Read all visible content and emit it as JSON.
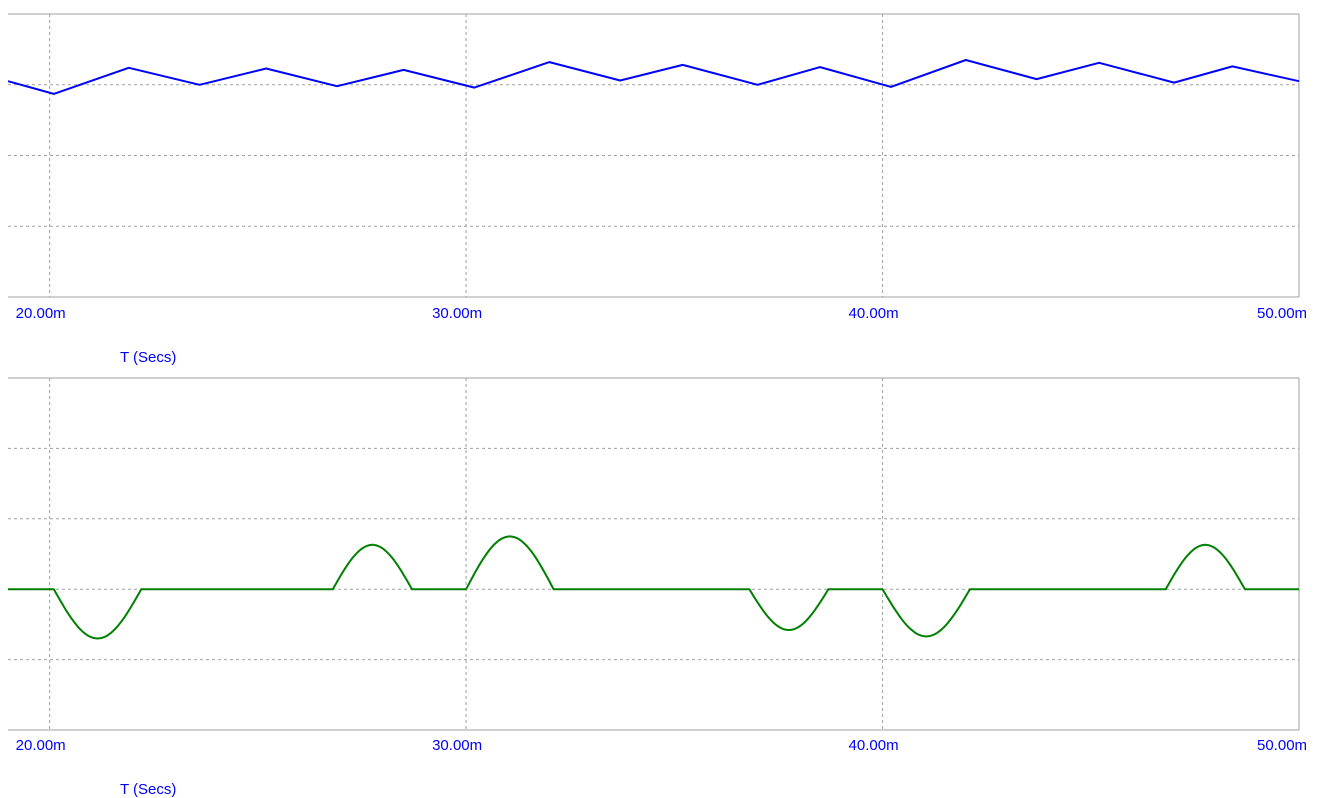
{
  "colors": {
    "grid": "#a0a0a0",
    "frame": "#a0a0a0",
    "axis_text": "#0000ff",
    "series_top": "#0000ff",
    "series_bottom": "#008000"
  },
  "chart_data": [
    {
      "type": "line",
      "title": "",
      "xlabel": "T (Secs)",
      "ylabel": "",
      "xlim": [
        0.019,
        0.05
      ],
      "ylim": [
        0,
        4
      ],
      "x_ticks": [
        0.02,
        0.03,
        0.04,
        0.05
      ],
      "x_tick_labels": [
        "20.00m",
        "30.00m",
        "40.00m",
        "50.00m"
      ],
      "grid": true,
      "legend": "none",
      "series": [
        {
          "x": [
            0.019,
            0.0201,
            0.0219,
            0.0236,
            0.0252,
            0.0269,
            0.0285,
            0.0302,
            0.032,
            0.0337,
            0.0352,
            0.037,
            0.0385,
            0.0402,
            0.042,
            0.0437,
            0.0452,
            0.047,
            0.0484,
            0.05
          ],
          "y": [
            3.05,
            2.87,
            3.24,
            3.0,
            3.23,
            2.98,
            3.21,
            2.96,
            3.32,
            3.06,
            3.28,
            3.0,
            3.25,
            2.97,
            3.35,
            3.08,
            3.31,
            3.03,
            3.26,
            3.05
          ]
        }
      ]
    },
    {
      "type": "line",
      "title": "",
      "xlabel": "T (Secs)",
      "ylabel": "",
      "xlim": [
        0.019,
        0.05
      ],
      "ylim": [
        0,
        5
      ],
      "x_ticks": [
        0.02,
        0.03,
        0.04,
        0.05
      ],
      "x_tick_labels": [
        "20.00m",
        "30.00m",
        "40.00m",
        "50.00m"
      ],
      "grid": true,
      "legend": "none",
      "series": [
        {
          "segments": [
            {
              "start": 0.019,
              "end": 0.0201,
              "level": 2.0,
              "amp": 0.0
            },
            {
              "start": 0.0201,
              "end": 0.0222,
              "level": 2.0,
              "amp": -0.7
            },
            {
              "start": 0.0222,
              "end": 0.0268,
              "level": 2.0,
              "amp": 0.0
            },
            {
              "start": 0.0268,
              "end": 0.0287,
              "level": 2.0,
              "amp": 0.63
            },
            {
              "start": 0.0287,
              "end": 0.03,
              "level": 2.0,
              "amp": 0.0
            },
            {
              "start": 0.03,
              "end": 0.0321,
              "level": 2.0,
              "amp": 0.75
            },
            {
              "start": 0.0321,
              "end": 0.0368,
              "level": 2.0,
              "amp": 0.0
            },
            {
              "start": 0.0368,
              "end": 0.0387,
              "level": 2.0,
              "amp": -0.58
            },
            {
              "start": 0.0387,
              "end": 0.04,
              "level": 2.0,
              "amp": 0.0
            },
            {
              "start": 0.04,
              "end": 0.0421,
              "level": 2.0,
              "amp": -0.67
            },
            {
              "start": 0.0421,
              "end": 0.0468,
              "level": 2.0,
              "amp": 0.0
            },
            {
              "start": 0.0468,
              "end": 0.0487,
              "level": 2.0,
              "amp": 0.63
            },
            {
              "start": 0.0487,
              "end": 0.05,
              "level": 2.0,
              "amp": 0.0
            }
          ]
        }
      ]
    }
  ]
}
